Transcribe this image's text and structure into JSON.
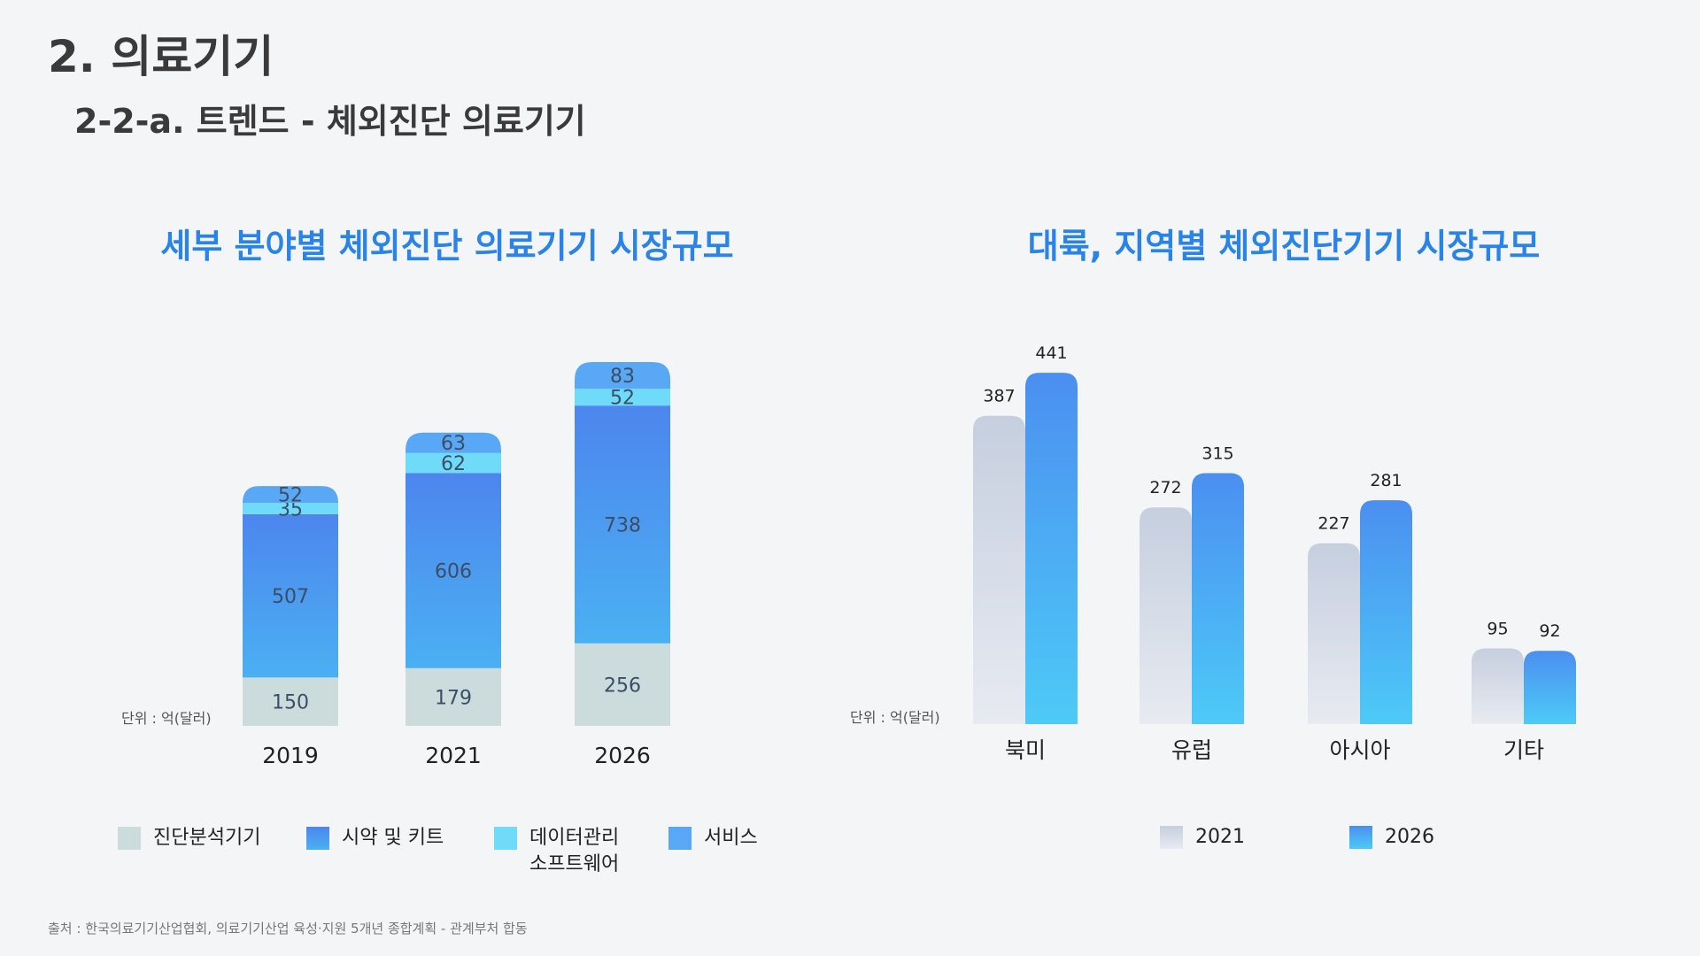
{
  "header": {
    "title": "2. 의료기기",
    "subtitle": "2-2-a. 트렌드 - 체외진단 의료기기"
  },
  "colors": {
    "title_blue": "#2a83e6",
    "diag": "#ccdcdd",
    "reagent_top": "#4c86ee",
    "reagent_bottom": "#4bb0f2",
    "software": "#6fdbf9",
    "service": "#58a8f5",
    "grey_top": "#c6cfdf",
    "grey_bottom": "#e7eaf1",
    "blue_top": "#4b8ff0",
    "blue_bottom": "#4dcaf7"
  },
  "chart_data": [
    {
      "type": "bar",
      "stacked": true,
      "title": "세부 분야별 체외진단 의료기기 시장규모",
      "unit_label": "단위 : 억(달러)",
      "categories": [
        "2019",
        "2021",
        "2026"
      ],
      "series": [
        {
          "name": "진단분석기기",
          "legend_label": "진단분석기기",
          "values": [
            150,
            179,
            256
          ]
        },
        {
          "name": "시약 및 키트",
          "legend_label": "시약 및 키트",
          "values": [
            507,
            606,
            738
          ]
        },
        {
          "name": "데이터관리 소프트웨어",
          "legend_label": "데이터관리\n소프트웨어",
          "values": [
            35,
            62,
            52
          ]
        },
        {
          "name": "서비스",
          "legend_label": "서비스",
          "values": [
            52,
            63,
            83
          ]
        }
      ]
    },
    {
      "type": "bar",
      "stacked": false,
      "title": "대륙, 지역별 체외진단기기 시장규모",
      "unit_label": "단위 : 억(달러)",
      "categories": [
        "북미",
        "유럽",
        "아시아",
        "기타"
      ],
      "series": [
        {
          "name": "2021",
          "values": [
            387,
            272,
            227,
            95
          ]
        },
        {
          "name": "2026",
          "values": [
            441,
            315,
            281,
            92
          ]
        }
      ]
    }
  ],
  "footer": {
    "source": "출처 : 한국의료기기산업협회, 의료기기산업 육성·지원 5개년 종합계획 - 관계부처 합동"
  }
}
